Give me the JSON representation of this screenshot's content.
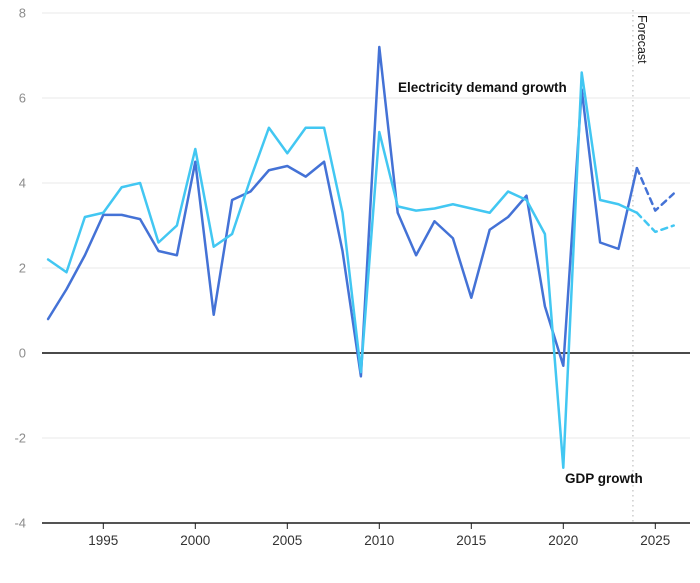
{
  "annotations": {
    "electricity_label": "Electricity demand growth",
    "gdp_label": "GDP growth",
    "forecast_label": "Forecast"
  },
  "colors": {
    "electricity": "#4472d6",
    "gdp": "#42c7f2",
    "grid": "#eaeaea",
    "zero_line": "#4a4a4a",
    "axis": "#1c1c1c",
    "y_tick_label": "#8c8c8c",
    "x_tick_label": "#333333",
    "forecast_divider": "#cccccc",
    "frame_border": "#4f7d5c"
  },
  "chart_data": {
    "type": "line",
    "x": [
      1992,
      1993,
      1994,
      1995,
      1996,
      1997,
      1998,
      1999,
      2000,
      2001,
      2002,
      2003,
      2004,
      2005,
      2006,
      2007,
      2008,
      2009,
      2010,
      2011,
      2012,
      2013,
      2014,
      2015,
      2016,
      2017,
      2018,
      2019,
      2020,
      2021,
      2022,
      2023,
      2024,
      2025,
      2026
    ],
    "series": [
      {
        "name": "Electricity demand growth",
        "color_key": "electricity",
        "values": [
          0.8,
          1.5,
          2.3,
          3.25,
          3.25,
          3.15,
          2.4,
          2.3,
          4.5,
          0.9,
          3.6,
          3.8,
          4.3,
          4.4,
          4.15,
          4.5,
          2.4,
          -0.55,
          7.2,
          3.3,
          2.3,
          3.1,
          2.7,
          1.3,
          2.9,
          3.2,
          3.7,
          1.1,
          -0.3,
          6.2,
          2.6,
          2.45,
          4.35,
          3.35,
          3.75
        ]
      },
      {
        "name": "GDP growth",
        "color_key": "gdp",
        "values": [
          2.2,
          1.9,
          3.2,
          3.3,
          3.9,
          4.0,
          2.6,
          3.0,
          4.8,
          2.5,
          2.8,
          4.1,
          5.3,
          4.7,
          5.3,
          5.3,
          3.3,
          -0.45,
          5.2,
          3.45,
          3.35,
          3.4,
          3.5,
          3.4,
          3.3,
          3.8,
          3.6,
          2.8,
          -2.7,
          6.6,
          3.6,
          3.5,
          3.3,
          2.85,
          3.0
        ]
      }
    ],
    "forecast_start": 2024,
    "ylim": [
      -4,
      8
    ],
    "yticks": [
      8,
      6,
      4,
      2,
      0,
      -2,
      -4
    ],
    "xticks": [
      1995,
      2000,
      2005,
      2010,
      2015,
      2020,
      2025
    ],
    "grid": true,
    "unit": "percent"
  }
}
